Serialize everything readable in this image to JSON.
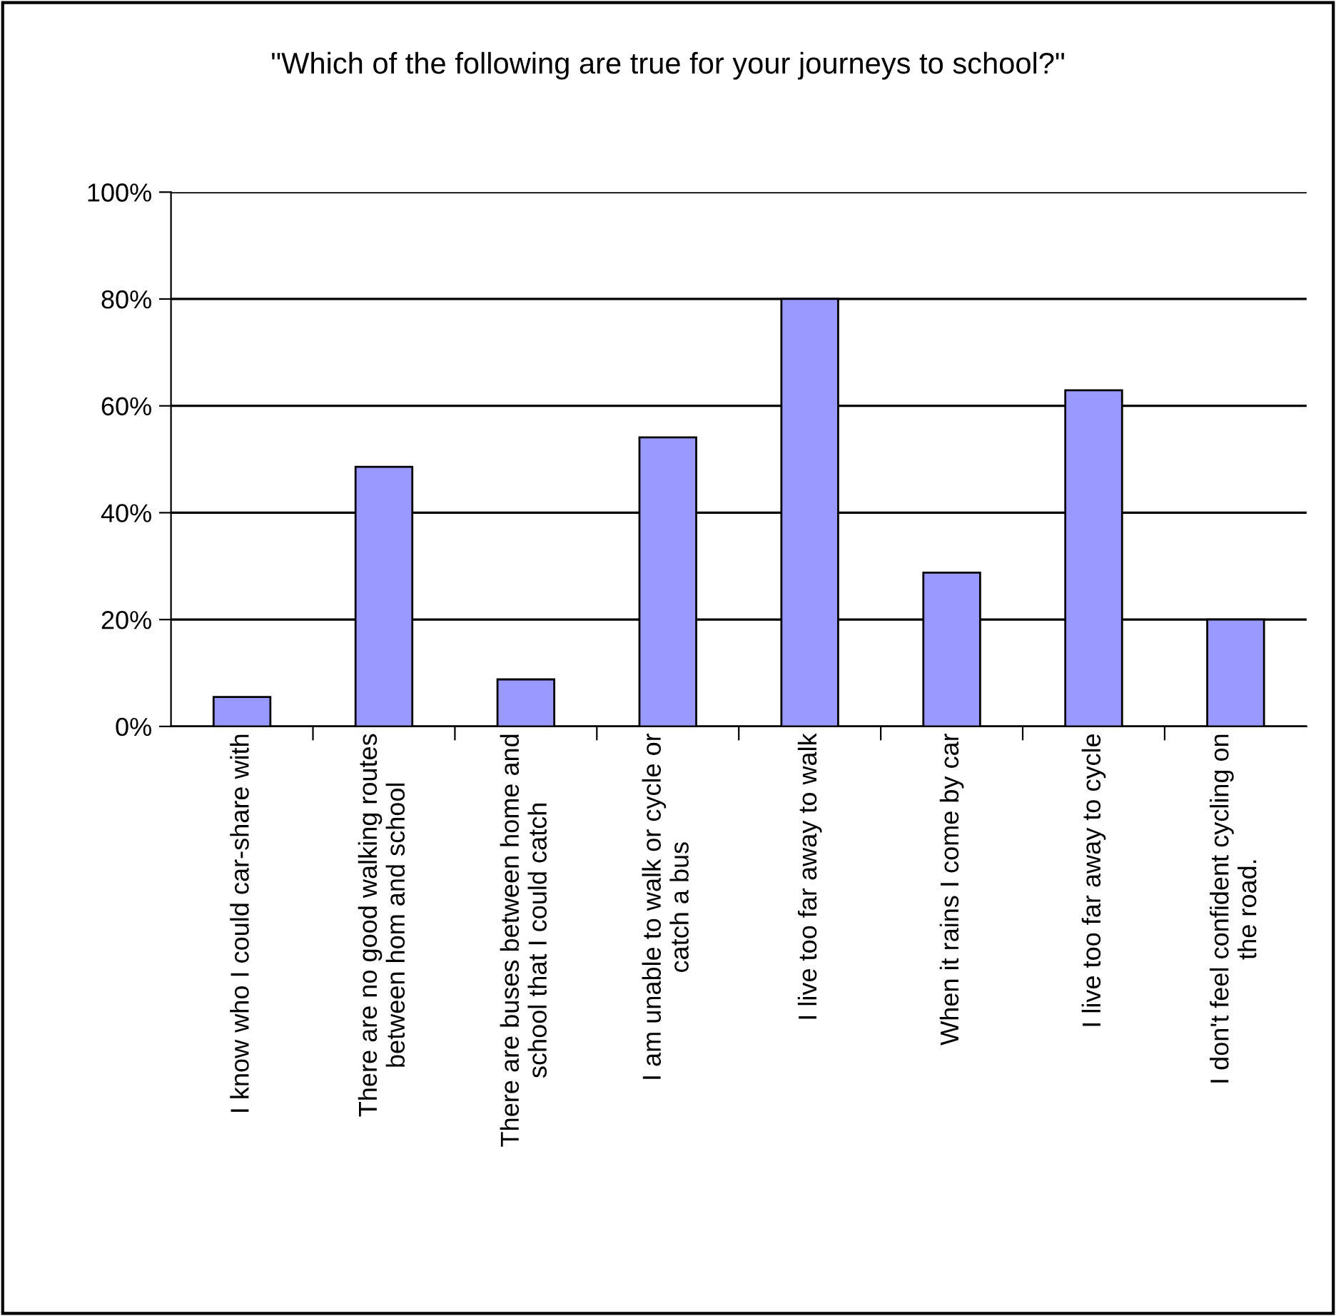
{
  "chart_data": {
    "type": "bar",
    "title": "\"Which of the following are true for your journeys to school?\"",
    "categories": [
      "I know who I could car-share with",
      "There are no good walking routes between hom and school",
      "There are buses between home and school that I could catch",
      "I am unable to walk or cycle or catch a bus",
      "I live too far away to walk",
      "When it rains I come by car",
      "I live too far away to cycle",
      "I don't feel confident cycling on the road."
    ],
    "values": [
      5.5,
      48.6,
      8.8,
      54.1,
      80,
      28.8,
      62.9,
      20
    ],
    "color": "#9999ff",
    "ylim": [
      0,
      100
    ],
    "yticks": [
      {
        "value": 0,
        "label": "0%"
      },
      {
        "value": 20,
        "label": "20%"
      },
      {
        "value": 40,
        "label": "40%"
      },
      {
        "value": 60,
        "label": "60%"
      },
      {
        "value": 80,
        "label": "80%"
      },
      {
        "value": 100,
        "label": "100%"
      }
    ],
    "grid": "y",
    "legend": false
  }
}
